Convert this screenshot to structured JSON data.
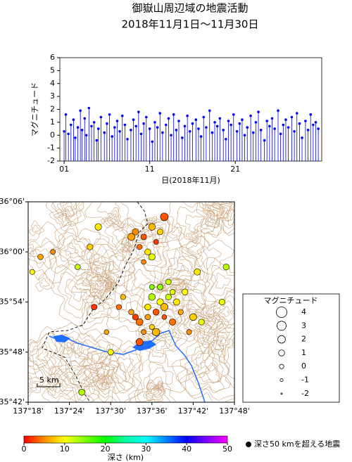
{
  "chart_data": [
    {
      "type": "stem",
      "title": "御嶽山周辺域の地震活動",
      "subtitle": "2018年11月1日～11月30日",
      "ylabel": "マグニチュード",
      "xlabel": "日(2018年11月)",
      "color": "#0000ff",
      "xlim": [
        0.5,
        31.1
      ],
      "xticks": [
        {
          "value": 1,
          "label": "01"
        },
        11,
        21
      ],
      "ylim": [
        -2,
        6
      ],
      "yticks": [
        -2,
        -1,
        0,
        1,
        2,
        3,
        4,
        5,
        6
      ],
      "x": [
        1.0,
        1.2,
        1.5,
        1.8,
        2.1,
        2.3,
        2.6,
        2.9,
        3.1,
        3.4,
        3.6,
        3.9,
        4.2,
        4.5,
        4.8,
        5.0,
        5.3,
        5.7,
        6.0,
        6.3,
        6.6,
        6.9,
        7.2,
        7.5,
        7.8,
        8.1,
        8.4,
        8.8,
        9.1,
        9.4,
        9.7,
        10.0,
        10.3,
        10.6,
        11.0,
        11.3,
        11.6,
        11.9,
        12.2,
        12.5,
        12.9,
        13.2,
        13.5,
        13.8,
        14.1,
        14.4,
        14.8,
        15.1,
        15.4,
        15.7,
        16.0,
        16.4,
        16.7,
        17.0,
        17.3,
        17.6,
        18.0,
        18.3,
        18.6,
        18.9,
        19.2,
        19.6,
        19.9,
        20.2,
        20.5,
        20.8,
        21.2,
        21.5,
        21.8,
        22.1,
        22.4,
        22.8,
        23.1,
        23.4,
        23.7,
        24.0,
        24.4,
        24.7,
        25.0,
        25.3,
        25.6,
        26.0,
        26.3,
        26.6,
        26.9,
        27.2,
        27.6,
        27.9,
        28.2,
        28.5,
        28.8,
        29.2,
        29.5,
        29.8,
        30.1,
        30.4,
        30.7
      ],
      "values": [
        0.3,
        1.6,
        0.1,
        0.8,
        1.2,
        -0.2,
        0.6,
        1.9,
        0.4,
        1.3,
        0.0,
        2.1,
        0.7,
        1.0,
        -0.4,
        0.5,
        1.4,
        0.2,
        0.9,
        1.6,
        -0.1,
        0.6,
        1.1,
        0.3,
        1.5,
        0.8,
        -0.3,
        0.4,
        1.2,
        0.7,
        1.8,
        0.1,
        0.9,
        1.4,
        0.5,
        -0.5,
        1.0,
        0.6,
        1.7,
        0.2,
        0.8,
        1.3,
        0.0,
        1.6,
        0.4,
        1.1,
        -0.2,
        0.7,
        1.5,
        0.3,
        0.9,
        1.2,
        0.5,
        -0.1,
        1.4,
        0.6,
        1.9,
        0.2,
        1.0,
        0.7,
        1.3,
        0.4,
        -0.3,
        1.1,
        0.8,
        1.6,
        0.3,
        0.9,
        1.2,
        0.0,
        0.6,
        1.5,
        0.2,
        1.0,
        1.8,
        0.4,
        -0.4,
        1.1,
        0.7,
        1.3,
        0.5,
        1.9,
        0.1,
        0.8,
        1.2,
        0.6,
        1.4,
        0.3,
        1.7,
        0.9,
        -0.2,
        1.1,
        0.4,
        1.6,
        0.8,
        1.0,
        0.5
      ]
    },
    {
      "type": "map",
      "xlim": [
        137.3,
        137.8
      ],
      "ylim": [
        35.7,
        36.1
      ],
      "xticks": [
        {
          "value": 137.3,
          "label": "137°18'"
        },
        {
          "value": 137.4,
          "label": "137°24'"
        },
        {
          "value": 137.5,
          "label": "137°30'"
        },
        {
          "value": 137.6,
          "label": "137°36'"
        },
        {
          "value": 137.7,
          "label": "137°42'"
        },
        {
          "value": 137.8,
          "label": "137°48'"
        }
      ],
      "yticks": [
        {
          "value": 35.7,
          "label": "35°42'"
        },
        {
          "value": 35.8,
          "label": "35°48'"
        },
        {
          "value": 35.9,
          "label": "35°54'"
        },
        {
          "value": 36.0,
          "label": "36°00'"
        },
        {
          "value": 36.1,
          "label": "36°06'"
        }
      ],
      "scale_label": "5 km",
      "lon": [
        137.56,
        137.58,
        137.6,
        137.57,
        137.59,
        137.61,
        137.55,
        137.62,
        137.58,
        137.6,
        137.63,
        137.47,
        137.57,
        137.59,
        137.61,
        137.6,
        137.62,
        137.64,
        137.63,
        137.65,
        137.66,
        137.58,
        137.56,
        137.6,
        137.62,
        137.67,
        137.65,
        137.61,
        137.63,
        137.59,
        137.64,
        137.68,
        137.7,
        137.72,
        137.69,
        137.57,
        137.55,
        137.6,
        137.52,
        137.46,
        137.33,
        137.31,
        137.42,
        137.45,
        137.36,
        137.78,
        137.77,
        137.5,
        137.43,
        137.71,
        137.53,
        137.49
      ],
      "lat": [
        36.04,
        36.03,
        36.05,
        36.01,
        36.0,
        36.02,
        36.03,
        36.04,
        35.98,
        35.99,
        36.07,
        36.05,
        35.86,
        35.87,
        35.88,
        35.85,
        35.9,
        35.91,
        35.89,
        35.92,
        35.9,
        35.84,
        35.87,
        35.91,
        35.93,
        35.88,
        35.86,
        35.84,
        35.87,
        35.89,
        35.94,
        35.92,
        35.87,
        35.86,
        35.84,
        35.82,
        35.88,
        35.93,
        35.89,
        35.89,
        35.99,
        35.96,
        35.97,
        36.01,
        36.0,
        35.97,
        35.9,
        35.8,
        35.72,
        35.96,
        35.91,
        35.84
      ],
      "depth": [
        5,
        3,
        7,
        4,
        9,
        2,
        6,
        8,
        5,
        11,
        3,
        9,
        4,
        6,
        3,
        8,
        10,
        12,
        7,
        11,
        9,
        5,
        2,
        13,
        14,
        6,
        4,
        7,
        3,
        9,
        12,
        10,
        8,
        11,
        5,
        3,
        6,
        15,
        4,
        2,
        6,
        10,
        12,
        8,
        5,
        13,
        11,
        10,
        13,
        9,
        7,
        6
      ],
      "magnitude": [
        1.2,
        0.8,
        1.5,
        0.5,
        1.0,
        0.3,
        1.7,
        0.9,
        0.2,
        1.3,
        2.1,
        1.4,
        1.6,
        0.7,
        1.1,
        0.4,
        1.4,
        0.9,
        1.8,
        0.6,
        1.2,
        0.3,
        1.0,
        1.5,
        0.8,
        0.5,
        1.3,
        1.9,
        0.2,
        1.1,
        0.7,
        1.0,
        1.6,
        0.9,
        0.4,
        1.7,
        0.6,
        0.3,
        0.5,
        0.8,
        0.7,
        0.4,
        0.6,
        0.9,
        0.3,
        1.0,
        0.9,
        0.8,
        1.1,
        1.2,
        0.5,
        0.2
      ],
      "size_legend": {
        "title": "マグニチュード",
        "values": [
          4,
          3,
          2,
          1,
          0,
          -1,
          -2
        ]
      },
      "colorbar": {
        "label": "深さ (km)",
        "clim": [
          0,
          50
        ],
        "ticks": [
          0,
          10,
          20,
          30,
          40,
          50
        ],
        "colors": [
          "#ff0000",
          "#ff8c00",
          "#ffff00",
          "#80ff00",
          "#00ff00",
          "#00ffa0",
          "#00ffff",
          "#0080ff",
          "#0000ff",
          "#8000ff",
          "#ff00ff"
        ]
      },
      "deep_note": "深さ50 kmを超える地震"
    }
  ]
}
